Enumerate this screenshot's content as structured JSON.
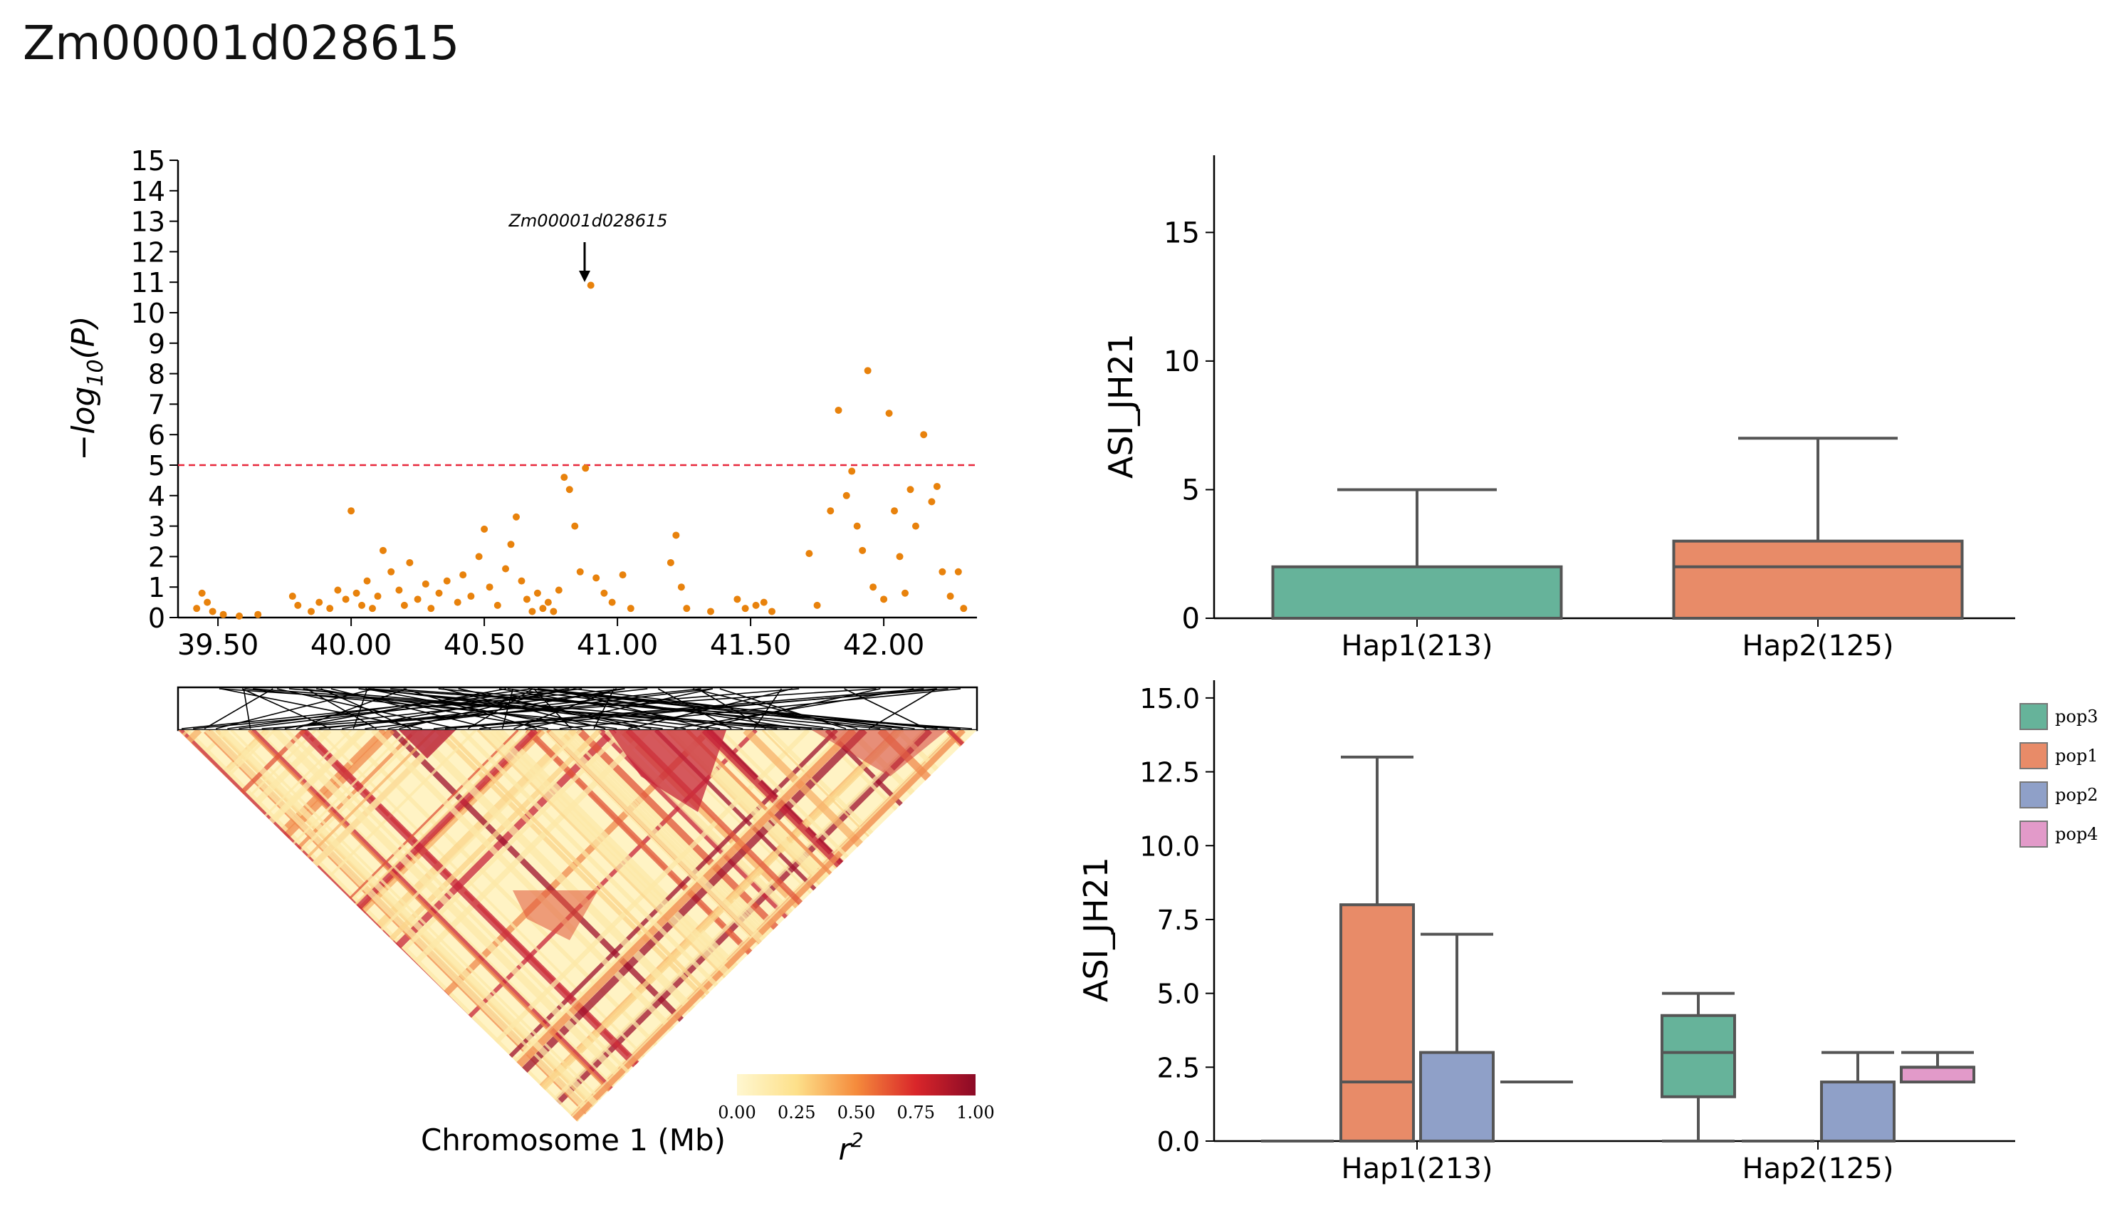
{
  "page": {
    "title": "Zm00001d028615"
  },
  "colors": {
    "point": "#E8820C",
    "threshold": "#E8283C",
    "hap1": "#66B39A",
    "hap2": "#E88B68",
    "pop3": "#66B39A",
    "pop1": "#E88B68",
    "pop2": "#8FA0C8",
    "pop4": "#E29AC9",
    "box_edge": "#555555",
    "ld_low": "#FFF5C8",
    "ld_high": "#8B0A26"
  },
  "chart_data": [
    {
      "id": "manhattan",
      "type": "scatter",
      "title": "",
      "xlabel": "Chromosome 1 (Mb)",
      "ylabel": "−log10(P)",
      "ylabel_main": "−log",
      "ylabel_sub": "10",
      "ylabel_tail": "(P)",
      "xlim": [
        39.35,
        42.35
      ],
      "ylim": [
        0,
        15
      ],
      "xticks": [
        39.5,
        40.0,
        40.5,
        41.0,
        41.5,
        42.0
      ],
      "xtick_labels": [
        "39.50",
        "40.00",
        "40.50",
        "41.00",
        "41.50",
        "42.00"
      ],
      "yticks": [
        0,
        1,
        2,
        3,
        4,
        5,
        6,
        7,
        8,
        9,
        10,
        11,
        12,
        13,
        14,
        15
      ],
      "ytick_labels": [
        "0",
        "1",
        "2",
        "3",
        "4",
        "5",
        "6",
        "7",
        "8",
        "9",
        "10",
        "11",
        "12",
        "13",
        "14",
        "15"
      ],
      "threshold": 5,
      "annotation": {
        "text": "Zm00001d028615",
        "x": 40.9,
        "y": 10.9
      },
      "points": [
        [
          39.42,
          0.3
        ],
        [
          39.44,
          0.8
        ],
        [
          39.46,
          0.5
        ],
        [
          39.48,
          0.2
        ],
        [
          39.52,
          0.1
        ],
        [
          39.58,
          0.05
        ],
        [
          39.65,
          0.1
        ],
        [
          39.78,
          0.7
        ],
        [
          39.8,
          0.4
        ],
        [
          39.85,
          0.2
        ],
        [
          39.88,
          0.5
        ],
        [
          39.92,
          0.3
        ],
        [
          39.95,
          0.9
        ],
        [
          39.98,
          0.6
        ],
        [
          40.0,
          3.5
        ],
        [
          40.02,
          0.8
        ],
        [
          40.04,
          0.4
        ],
        [
          40.06,
          1.2
        ],
        [
          40.08,
          0.3
        ],
        [
          40.1,
          0.7
        ],
        [
          40.12,
          2.2
        ],
        [
          40.15,
          1.5
        ],
        [
          40.18,
          0.9
        ],
        [
          40.2,
          0.4
        ],
        [
          40.22,
          1.8
        ],
        [
          40.25,
          0.6
        ],
        [
          40.28,
          1.1
        ],
        [
          40.3,
          0.3
        ],
        [
          40.33,
          0.8
        ],
        [
          40.36,
          1.2
        ],
        [
          40.4,
          0.5
        ],
        [
          40.42,
          1.4
        ],
        [
          40.45,
          0.7
        ],
        [
          40.48,
          2.0
        ],
        [
          40.5,
          2.9
        ],
        [
          40.52,
          1.0
        ],
        [
          40.55,
          0.4
        ],
        [
          40.58,
          1.6
        ],
        [
          40.6,
          2.4
        ],
        [
          40.62,
          3.3
        ],
        [
          40.64,
          1.2
        ],
        [
          40.66,
          0.6
        ],
        [
          40.68,
          0.2
        ],
        [
          40.7,
          0.8
        ],
        [
          40.72,
          0.3
        ],
        [
          40.74,
          0.5
        ],
        [
          40.76,
          0.2
        ],
        [
          40.78,
          0.9
        ],
        [
          40.8,
          4.6
        ],
        [
          40.82,
          4.2
        ],
        [
          40.84,
          3.0
        ],
        [
          40.86,
          1.5
        ],
        [
          40.88,
          4.9
        ],
        [
          40.9,
          10.9
        ],
        [
          40.92,
          1.3
        ],
        [
          40.95,
          0.8
        ],
        [
          40.98,
          0.5
        ],
        [
          41.02,
          1.4
        ],
        [
          41.05,
          0.3
        ],
        [
          41.2,
          1.8
        ],
        [
          41.22,
          2.7
        ],
        [
          41.24,
          1.0
        ],
        [
          41.26,
          0.3
        ],
        [
          41.35,
          0.2
        ],
        [
          41.45,
          0.6
        ],
        [
          41.48,
          0.3
        ],
        [
          41.52,
          0.4
        ],
        [
          41.55,
          0.5
        ],
        [
          41.58,
          0.2
        ],
        [
          41.72,
          2.1
        ],
        [
          41.75,
          0.4
        ],
        [
          41.8,
          3.5
        ],
        [
          41.83,
          6.8
        ],
        [
          41.86,
          4.0
        ],
        [
          41.88,
          4.8
        ],
        [
          41.9,
          3.0
        ],
        [
          41.92,
          2.2
        ],
        [
          41.94,
          8.1
        ],
        [
          41.96,
          1.0
        ],
        [
          42.0,
          0.6
        ],
        [
          42.02,
          6.7
        ],
        [
          42.04,
          3.5
        ],
        [
          42.06,
          2.0
        ],
        [
          42.08,
          0.8
        ],
        [
          42.1,
          4.2
        ],
        [
          42.12,
          3.0
        ],
        [
          42.15,
          6.0
        ],
        [
          42.18,
          3.8
        ],
        [
          42.2,
          4.3
        ],
        [
          42.22,
          1.5
        ],
        [
          42.25,
          0.7
        ],
        [
          42.28,
          1.5
        ],
        [
          42.3,
          0.3
        ]
      ]
    },
    {
      "id": "ld_heatmap",
      "type": "heatmap",
      "colorbar_label": "r2",
      "colorbar_label_main": "r",
      "colorbar_label_sup": "2",
      "colorbar_range": [
        0,
        1
      ],
      "colorbar_ticks": [
        "0.00",
        "0.25",
        "0.50",
        "0.75",
        "1.00"
      ]
    },
    {
      "id": "box_haplotype",
      "type": "box",
      "ylabel": "ASI_JH21",
      "ylim": [
        0,
        18
      ],
      "yticks": [
        0,
        5,
        10,
        15
      ],
      "ytick_labels": [
        "0",
        "5",
        "10",
        "15"
      ],
      "categories": [
        "Hap1(213)",
        "Hap2(125)"
      ],
      "boxes": [
        {
          "category": "Hap1(213)",
          "min": 0,
          "q1": 0,
          "median": 0,
          "q3": 2,
          "max": 5,
          "color_key": "hap1"
        },
        {
          "category": "Hap2(125)",
          "min": 0,
          "q1": 0,
          "median": 2,
          "q3": 3,
          "max": 7,
          "color_key": "hap2"
        }
      ]
    },
    {
      "id": "box_population",
      "type": "box",
      "ylabel": "ASI_JH21",
      "ylim": [
        0,
        15.6
      ],
      "yticks": [
        0,
        2.5,
        5,
        7.5,
        10,
        12.5,
        15
      ],
      "ytick_labels": [
        "0.0",
        "2.5",
        "5.0",
        "7.5",
        "10.0",
        "12.5",
        "15.0"
      ],
      "categories": [
        "Hap1(213)",
        "Hap2(125)"
      ],
      "legend": [
        "pop3",
        "pop1",
        "pop2",
        "pop4"
      ],
      "groups": [
        {
          "category": "Hap1(213)",
          "boxes": [
            {
              "pop": "pop3",
              "min": 0,
              "q1": 0,
              "median": 0,
              "q3": 0,
              "max": 0
            },
            {
              "pop": "pop1",
              "min": 0,
              "q1": 0,
              "median": 2,
              "q3": 8,
              "max": 13
            },
            {
              "pop": "pop2",
              "min": 0,
              "q1": 0,
              "median": 0,
              "q3": 3,
              "max": 7
            },
            {
              "pop": "pop4",
              "min": 2,
              "q1": 2,
              "median": 2,
              "q3": 2,
              "max": 2
            }
          ]
        },
        {
          "category": "Hap2(125)",
          "boxes": [
            {
              "pop": "pop3",
              "min": 0,
              "q1": 1.5,
              "median": 3,
              "q3": 4.25,
              "max": 5
            },
            {
              "pop": "pop1",
              "min": 0,
              "q1": 0,
              "median": 0,
              "q3": 0,
              "max": 0
            },
            {
              "pop": "pop2",
              "min": 0,
              "q1": 0,
              "median": 0,
              "q3": 2,
              "max": 3
            },
            {
              "pop": "pop4",
              "min": 2,
              "q1": 2,
              "median": 2.5,
              "q3": 2.5,
              "max": 3
            }
          ]
        }
      ]
    }
  ]
}
